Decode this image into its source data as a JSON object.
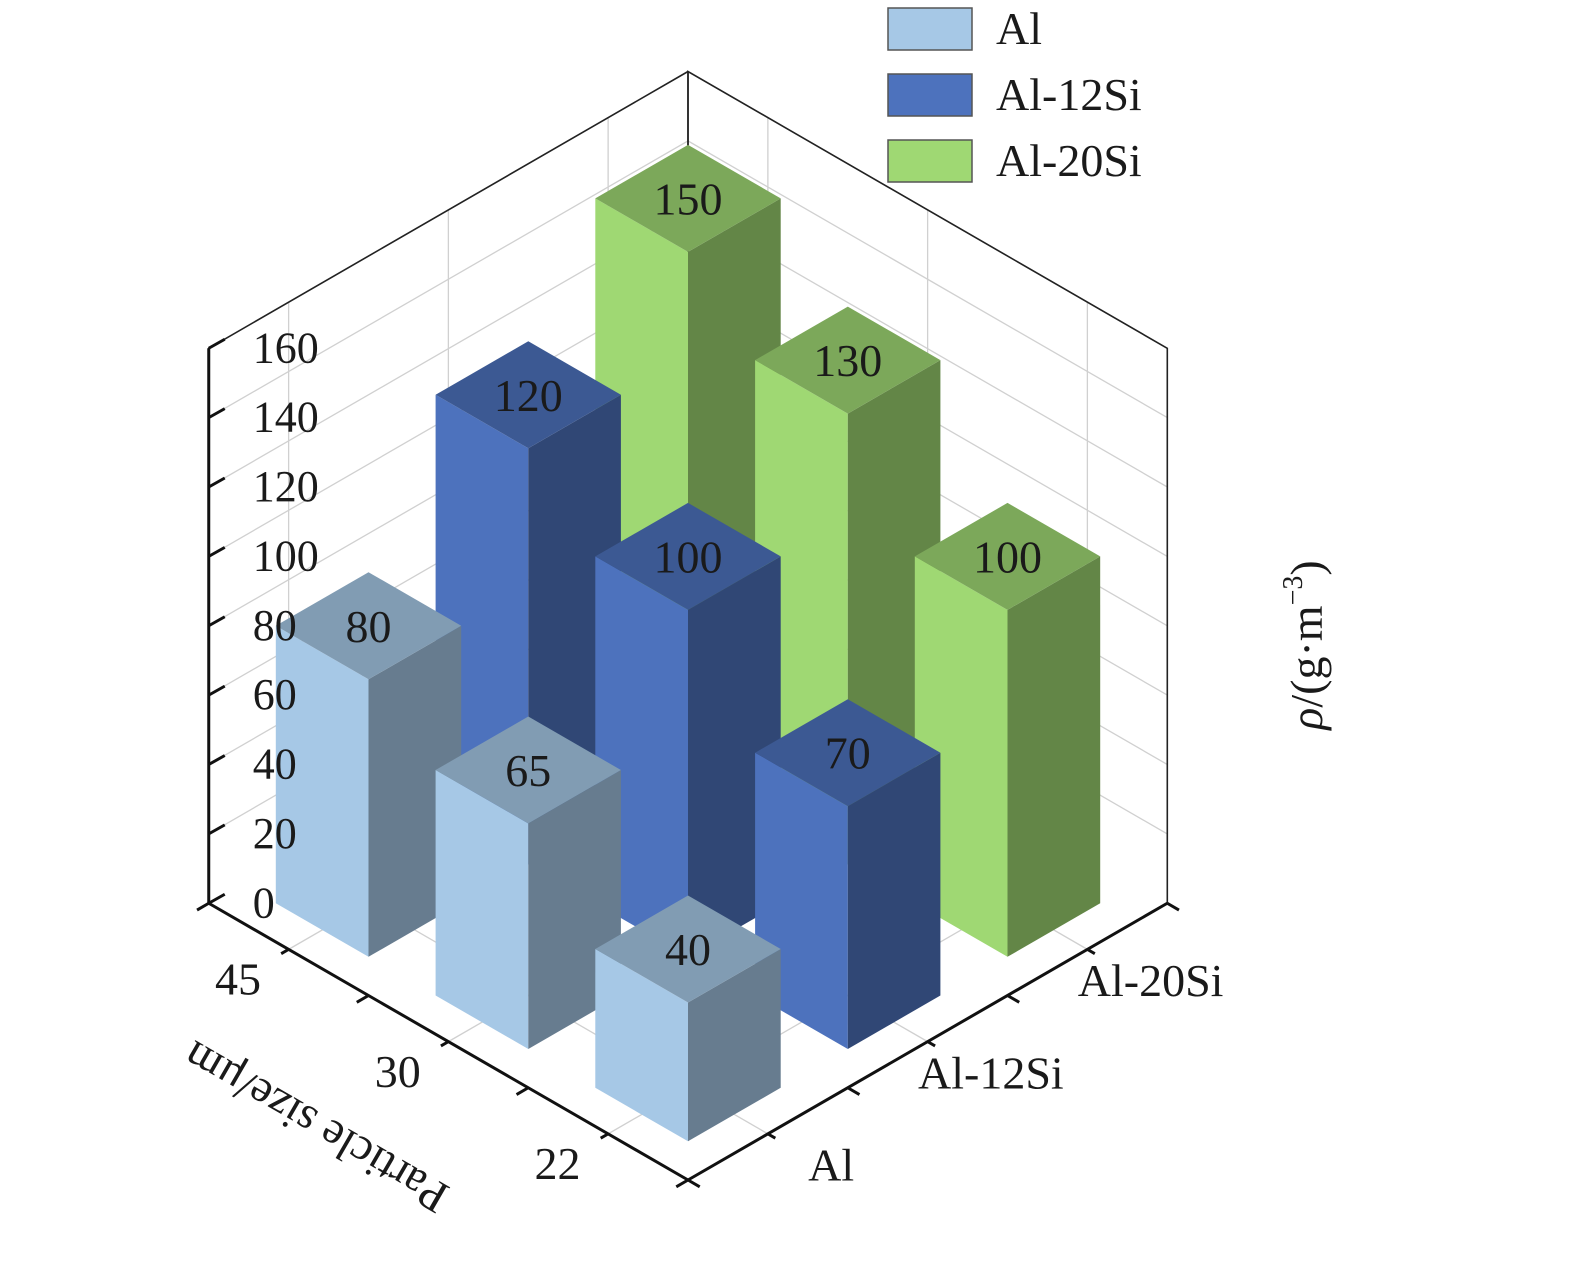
{
  "chart_data": {
    "type": "bar3d",
    "x_categories": [
      "45",
      "30",
      "22"
    ],
    "y_categories": [
      "Al",
      "Al-12Si",
      "Al-20Si"
    ],
    "series": [
      {
        "name": "Al",
        "color": "#a6c8e6",
        "values": [
          80,
          65,
          40
        ]
      },
      {
        "name": "Al-12Si",
        "color": "#4d72bd",
        "values": [
          120,
          100,
          70
        ]
      },
      {
        "name": "Al-20Si",
        "color": "#9fd873",
        "values": [
          150,
          130,
          100
        ]
      }
    ],
    "xlabel": "Particle size/μm",
    "zlabel_main": "ρ/(g·m",
    "zlabel_sup": "−3",
    "zlabel_close": ")",
    "zlim": [
      0,
      160
    ],
    "zticks": [
      0,
      20,
      40,
      60,
      80,
      100,
      120,
      140,
      160
    ],
    "legend_position": "top-right",
    "grid": true
  }
}
